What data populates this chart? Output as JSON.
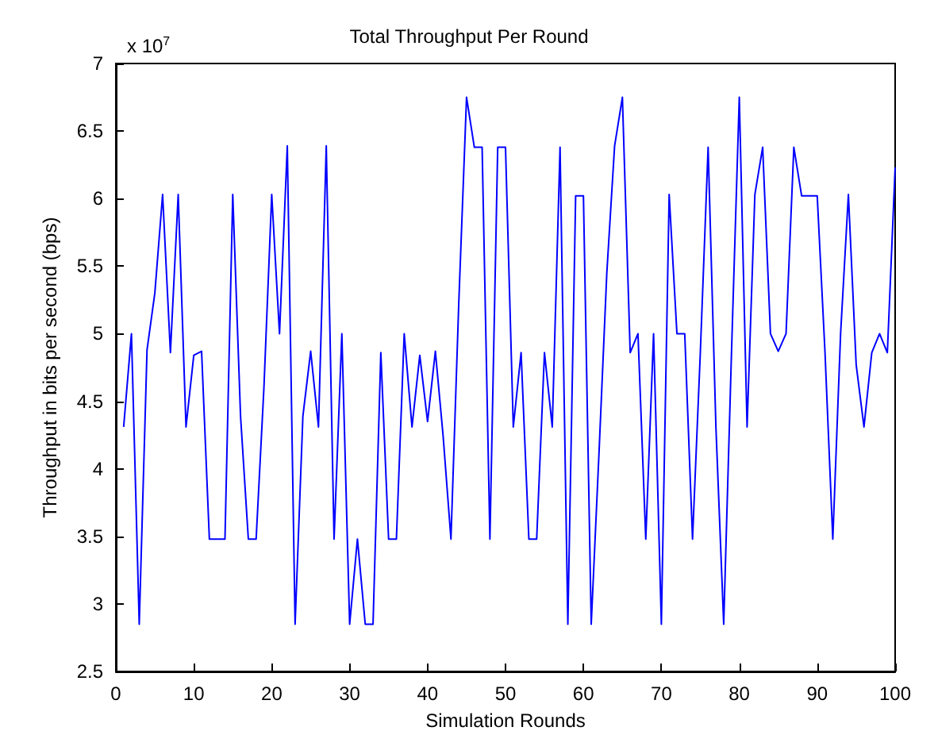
{
  "chart_data": {
    "type": "line",
    "title": "Total Throughput Per Round",
    "xlabel": "Simulation Rounds",
    "ylabel": "Throughput in bits per second (bps)",
    "annotations": [
      "x 10$^{7}$"
    ],
    "x": [
      1,
      2,
      3,
      4,
      5,
      6,
      7,
      8,
      9,
      10,
      11,
      12,
      13,
      14,
      15,
      16,
      17,
      18,
      19,
      20,
      21,
      22,
      23,
      24,
      25,
      26,
      27,
      28,
      29,
      30,
      31,
      32,
      33,
      34,
      35,
      36,
      37,
      38,
      39,
      40,
      41,
      42,
      43,
      44,
      45,
      46,
      47,
      48,
      49,
      50,
      51,
      52,
      53,
      54,
      55,
      56,
      57,
      58,
      59,
      60,
      61,
      62,
      63,
      64,
      65,
      66,
      67,
      68,
      69,
      70,
      71,
      72,
      73,
      74,
      75,
      76,
      77,
      78,
      79,
      80,
      81,
      82,
      83,
      84,
      85,
      86,
      87,
      88,
      89,
      90,
      91,
      92,
      93,
      94,
      95,
      96,
      97,
      98,
      99,
      100
    ],
    "series": [
      {
        "color": "#0000ff",
        "values": [
          4.31,
          5.0,
          2.85,
          4.88,
          5.3,
          6.03,
          4.86,
          6.03,
          4.31,
          4.84,
          4.87,
          3.48,
          3.48,
          3.48,
          6.03,
          4.39,
          3.48,
          3.48,
          4.6,
          6.03,
          5.0,
          6.39,
          2.85,
          4.39,
          4.87,
          4.31,
          6.39,
          3.48,
          5.0,
          2.85,
          3.48,
          2.85,
          2.85,
          4.86,
          3.48,
          3.48,
          5.0,
          4.31,
          4.84,
          4.35,
          4.87,
          4.24,
          3.48,
          5.22,
          6.75,
          6.38,
          6.38,
          3.48,
          6.38,
          6.38,
          4.31,
          4.86,
          3.48,
          3.48,
          4.86,
          4.31,
          6.38,
          2.85,
          6.02,
          6.02,
          2.85,
          4.12,
          5.45,
          6.39,
          6.75,
          4.86,
          5.0,
          3.48,
          5.0,
          2.85,
          6.03,
          5.0,
          5.0,
          3.48,
          4.86,
          6.38,
          4.31,
          2.85,
          4.86,
          6.75,
          4.31,
          6.03,
          6.38,
          5.0,
          4.87,
          5.0,
          6.38,
          6.02,
          6.02,
          6.02,
          4.86,
          3.48,
          5.0,
          6.03,
          4.77,
          4.31,
          4.86,
          5.0,
          4.86,
          6.23
        ]
      }
    ],
    "xlim": [
      0,
      100
    ],
    "xticks": [
      0,
      10,
      20,
      30,
      40,
      50,
      60,
      70,
      80,
      90,
      100
    ],
    "ylim": [
      2.5,
      7
    ],
    "yticks": [
      2.5,
      3,
      3.5,
      4,
      4.5,
      5,
      5.5,
      6,
      6.5,
      7
    ],
    "grid": false,
    "marker": "none",
    "line_style": "solid"
  }
}
